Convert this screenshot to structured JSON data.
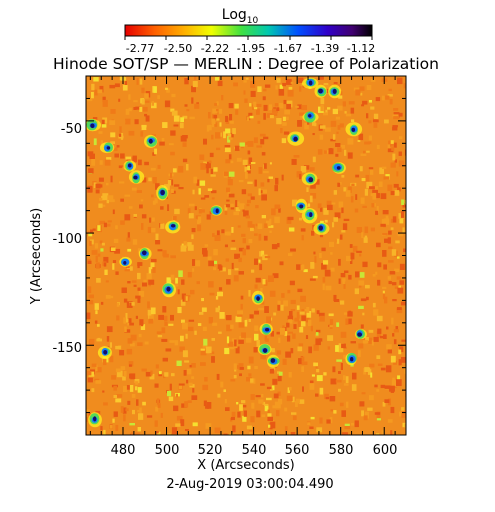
{
  "colorbar": {
    "label_main": "Log",
    "label_sub": "10",
    "ticks": [
      "-2.77",
      "-2.50",
      "-2.22",
      "-1.95",
      "-1.67",
      "-1.39",
      "-1.12"
    ],
    "colors": [
      "#e60000",
      "#ff6000",
      "#ffb000",
      "#f0ff00",
      "#40e040",
      "#00c8b0",
      "#0050ff",
      "#3000c8",
      "#400070",
      "#000000"
    ]
  },
  "chart_data": {
    "type": "heatmap",
    "title": "Hinode SOT/SP — MERLIN : Degree of Polarization",
    "xlabel": "X (Arcseconds)",
    "ylabel": "Y (Arcseconds)",
    "xlim": [
      463,
      610
    ],
    "ylim": [
      -190,
      -30
    ],
    "xticks": [
      480,
      500,
      520,
      540,
      560,
      580,
      600
    ],
    "yticks": [
      -150,
      -100,
      -50
    ],
    "value_range_log10": [
      -2.77,
      -1.12
    ],
    "background_log10_approx": -2.5,
    "note": "2-Aug-2019 03:00:04.490",
    "strong_polarization_patches": [
      {
        "x": 466,
        "y": -52
      },
      {
        "x": 473,
        "y": -62
      },
      {
        "x": 483,
        "y": -70
      },
      {
        "x": 486,
        "y": -75
      },
      {
        "x": 493,
        "y": -59
      },
      {
        "x": 498,
        "y": -82
      },
      {
        "x": 503,
        "y": -97
      },
      {
        "x": 490,
        "y": -109
      },
      {
        "x": 481,
        "y": -113
      },
      {
        "x": 501,
        "y": -125
      },
      {
        "x": 542,
        "y": -129
      },
      {
        "x": 546,
        "y": -143
      },
      {
        "x": 545,
        "y": -152
      },
      {
        "x": 549,
        "y": -157
      },
      {
        "x": 559,
        "y": -58
      },
      {
        "x": 566,
        "y": -33
      },
      {
        "x": 571,
        "y": -37
      },
      {
        "x": 577,
        "y": -37
      },
      {
        "x": 566,
        "y": -48
      },
      {
        "x": 586,
        "y": -54
      },
      {
        "x": 579,
        "y": -71
      },
      {
        "x": 562,
        "y": -88
      },
      {
        "x": 566,
        "y": -92
      },
      {
        "x": 571,
        "y": -98
      },
      {
        "x": 566,
        "y": -76
      },
      {
        "x": 589,
        "y": -145
      },
      {
        "x": 585,
        "y": -156
      },
      {
        "x": 467,
        "y": -183
      },
      {
        "x": 472,
        "y": -153
      },
      {
        "x": 523,
        "y": -90
      }
    ]
  }
}
